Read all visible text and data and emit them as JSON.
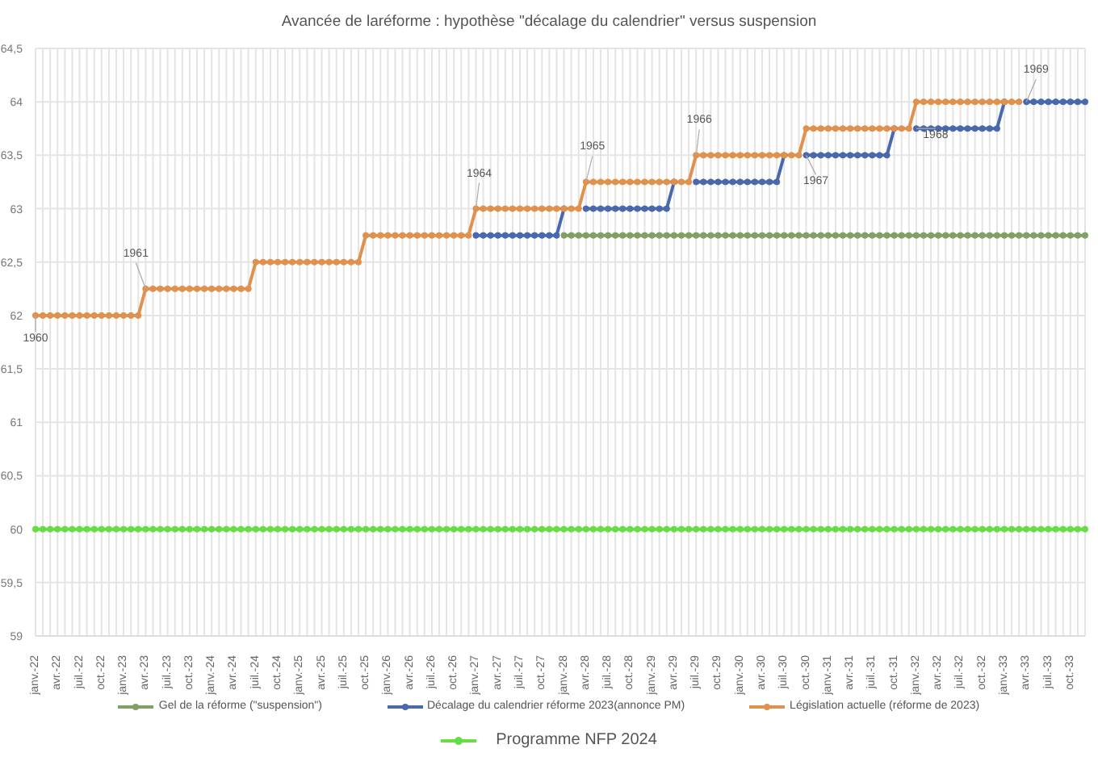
{
  "chart_data": {
    "type": "line",
    "title": "Avancée de laréforme : hypothèse \"décalage du calendrier\" versus suspension",
    "categories": [
      "janv.-22",
      null,
      null,
      "avr.-22",
      null,
      null,
      "juil.-22",
      null,
      null,
      "oct.-22",
      null,
      null,
      "janv.-23",
      null,
      null,
      "avr.-23",
      null,
      null,
      "juil.-23",
      null,
      null,
      "oct.-23",
      null,
      null,
      "janv.-24",
      null,
      null,
      "avr.-24",
      null,
      null,
      "juil.-24",
      null,
      null,
      "oct.-24",
      null,
      null,
      "janv.-25",
      null,
      null,
      "avr.-25",
      null,
      null,
      "juil.-25",
      null,
      null,
      "oct.-25",
      null,
      null,
      "janv.-26",
      null,
      null,
      "avr.-26",
      null,
      null,
      "juil.-26",
      null,
      null,
      "oct.-26",
      null,
      null,
      "janv.-27",
      null,
      null,
      "avr.-27",
      null,
      null,
      "juil.-27",
      null,
      null,
      "oct.-27",
      null,
      null,
      "janv.-28",
      null,
      null,
      "avr.-28",
      null,
      null,
      "juil.-28",
      null,
      null,
      "oct.-28",
      null,
      null,
      "janv.-29",
      null,
      null,
      "avr.-29",
      null,
      null,
      "juil.-29",
      null,
      null,
      "oct.-29",
      null,
      null,
      "janv.-30",
      null,
      null,
      "avr.-30",
      null,
      null,
      "juil.-30",
      null,
      null,
      "oct.-30",
      null,
      null,
      "janv.-31",
      null,
      null,
      "avr.-31",
      null,
      null,
      "juil.-31",
      null,
      null,
      "oct.-31",
      null,
      null,
      "janv.-32",
      null,
      null,
      "avr.-32",
      null,
      null,
      "juil.-32",
      null,
      null,
      "oct.-32",
      null,
      null,
      "janv.-33",
      null,
      null,
      "avr.-33",
      null,
      null,
      "juil.-33",
      null,
      null,
      "oct.-33",
      null,
      null
    ],
    "series": [
      {
        "name": "Gel de la réforme (\"suspension\")",
        "color": "#82a066",
        "values": [
          null,
          null,
          null,
          null,
          null,
          null,
          null,
          null,
          null,
          null,
          null,
          null,
          null,
          null,
          null,
          null,
          null,
          null,
          null,
          null,
          null,
          null,
          null,
          null,
          null,
          null,
          null,
          null,
          null,
          null,
          null,
          null,
          null,
          null,
          null,
          null,
          null,
          null,
          null,
          null,
          null,
          null,
          null,
          null,
          null,
          null,
          null,
          null,
          null,
          null,
          null,
          null,
          null,
          null,
          null,
          null,
          null,
          null,
          null,
          null,
          null,
          null,
          null,
          null,
          null,
          null,
          null,
          null,
          null,
          null,
          null,
          null,
          62.75,
          62.75,
          62.75,
          62.75,
          62.75,
          62.75,
          62.75,
          62.75,
          62.75,
          62.75,
          62.75,
          62.75,
          62.75,
          62.75,
          62.75,
          62.75,
          62.75,
          62.75,
          62.75,
          62.75,
          62.75,
          62.75,
          62.75,
          62.75,
          62.75,
          62.75,
          62.75,
          62.75,
          62.75,
          62.75,
          62.75,
          62.75,
          62.75,
          62.75,
          62.75,
          62.75,
          62.75,
          62.75,
          62.75,
          62.75,
          62.75,
          62.75,
          62.75,
          62.75,
          62.75,
          62.75,
          62.75,
          62.75,
          62.75,
          62.75,
          62.75,
          62.75,
          62.75,
          62.75,
          62.75,
          62.75,
          62.75,
          62.75,
          62.75,
          62.75,
          62.75,
          62.75,
          62.75,
          62.75,
          62.75,
          62.75,
          62.75,
          62.75,
          62.75,
          62.75,
          62.75,
          62.75
        ]
      },
      {
        "name": "Décalage du calendrier réforme 2023(annonce PM)",
        "color": "#4a68ad",
        "values": [
          null,
          null,
          null,
          null,
          null,
          null,
          null,
          null,
          null,
          null,
          null,
          null,
          null,
          null,
          null,
          null,
          null,
          null,
          null,
          null,
          null,
          null,
          null,
          null,
          null,
          null,
          null,
          null,
          null,
          null,
          null,
          null,
          null,
          null,
          null,
          null,
          null,
          null,
          null,
          null,
          null,
          null,
          null,
          null,
          null,
          null,
          null,
          null,
          null,
          null,
          null,
          null,
          null,
          null,
          null,
          null,
          null,
          null,
          null,
          null,
          62.75,
          62.75,
          62.75,
          62.75,
          62.75,
          62.75,
          62.75,
          62.75,
          62.75,
          62.75,
          62.75,
          62.75,
          63,
          null,
          null,
          63,
          63,
          63,
          63,
          63,
          63,
          63,
          63,
          63,
          63,
          63,
          63,
          63.25,
          null,
          null,
          63.25,
          63.25,
          63.25,
          63.25,
          63.25,
          63.25,
          63.25,
          63.25,
          63.25,
          63.25,
          63.25,
          63.25,
          63.5,
          null,
          null,
          63.5,
          63.5,
          63.5,
          63.5,
          63.5,
          63.5,
          63.5,
          63.5,
          63.5,
          63.5,
          63.5,
          63.5,
          63.75,
          null,
          null,
          63.75,
          63.75,
          63.75,
          63.75,
          63.75,
          63.75,
          63.75,
          63.75,
          63.75,
          63.75,
          63.75,
          63.75,
          64,
          null,
          null,
          64,
          64,
          64,
          64,
          64,
          64,
          64,
          64,
          64
        ]
      },
      {
        "name": "Législation actuelle (réforme de 2023)",
        "color": "#e0914d",
        "values": [
          62,
          62,
          62,
          62,
          62,
          62,
          62,
          62,
          62,
          62,
          62,
          62,
          62,
          62,
          62,
          62.25,
          62.25,
          62.25,
          62.25,
          62.25,
          62.25,
          62.25,
          62.25,
          62.25,
          62.25,
          62.25,
          62.25,
          62.25,
          62.25,
          62.25,
          62.5,
          62.5,
          62.5,
          62.5,
          62.5,
          62.5,
          62.5,
          62.5,
          62.5,
          62.5,
          62.5,
          62.5,
          62.5,
          62.5,
          62.5,
          62.75,
          62.75,
          62.75,
          62.75,
          62.75,
          62.75,
          62.75,
          62.75,
          62.75,
          62.75,
          62.75,
          62.75,
          62.75,
          62.75,
          62.75,
          63,
          63,
          63,
          63,
          63,
          63,
          63,
          63,
          63,
          63,
          63,
          63,
          63,
          63,
          63,
          63.25,
          63.25,
          63.25,
          63.25,
          63.25,
          63.25,
          63.25,
          63.25,
          63.25,
          63.25,
          63.25,
          63.25,
          63.25,
          63.25,
          63.25,
          63.5,
          63.5,
          63.5,
          63.5,
          63.5,
          63.5,
          63.5,
          63.5,
          63.5,
          63.5,
          63.5,
          63.5,
          63.5,
          63.5,
          63.5,
          63.75,
          63.75,
          63.75,
          63.75,
          63.75,
          63.75,
          63.75,
          63.75,
          63.75,
          63.75,
          63.75,
          63.75,
          63.75,
          63.75,
          63.75,
          64,
          64,
          64,
          64,
          64,
          64,
          64,
          64,
          64,
          64,
          64,
          64,
          64,
          64,
          64,
          null,
          null,
          null,
          null,
          null,
          null,
          null,
          null,
          null
        ]
      },
      {
        "name": "Programme NFP 2024",
        "color": "#66dd44",
        "values": [
          60,
          60,
          60,
          60,
          60,
          60,
          60,
          60,
          60,
          60,
          60,
          60,
          60,
          60,
          60,
          60,
          60,
          60,
          60,
          60,
          60,
          60,
          60,
          60,
          60,
          60,
          60,
          60,
          60,
          60,
          60,
          60,
          60,
          60,
          60,
          60,
          60,
          60,
          60,
          60,
          60,
          60,
          60,
          60,
          60,
          60,
          60,
          60,
          60,
          60,
          60,
          60,
          60,
          60,
          60,
          60,
          60,
          60,
          60,
          60,
          60,
          60,
          60,
          60,
          60,
          60,
          60,
          60,
          60,
          60,
          60,
          60,
          60,
          60,
          60,
          60,
          60,
          60,
          60,
          60,
          60,
          60,
          60,
          60,
          60,
          60,
          60,
          60,
          60,
          60,
          60,
          60,
          60,
          60,
          60,
          60,
          60,
          60,
          60,
          60,
          60,
          60,
          60,
          60,
          60,
          60,
          60,
          60,
          60,
          60,
          60,
          60,
          60,
          60,
          60,
          60,
          60,
          60,
          60,
          60,
          60,
          60,
          60,
          60,
          60,
          60,
          60,
          60,
          60,
          60,
          60,
          60,
          60,
          60,
          60,
          60,
          60,
          60,
          60,
          60,
          60,
          60,
          60,
          60
        ]
      }
    ],
    "ylim": [
      59,
      64.5
    ],
    "yticks": [
      59,
      {
        "value": 59.5,
        "label": "59,5"
      },
      60,
      {
        "value": 60.5,
        "label": "60,5"
      },
      61,
      {
        "value": 61.5,
        "label": "61,5"
      },
      62,
      {
        "value": 62.5,
        "label": "62,5"
      },
      63,
      {
        "value": 63.5,
        "label": "63,5"
      },
      64,
      {
        "value": 64.5,
        "label": "64,5"
      }
    ],
    "annotations": [
      {
        "text": "1960",
        "x": "janv.-22",
        "y": 62
      },
      {
        "text": "1961",
        "x": "avr.-23",
        "y": 62.25
      },
      {
        "text": "1964",
        "x": "janv.-27",
        "y": 63
      },
      {
        "text": "1965",
        "x": "avr.-28",
        "y": 63.25
      },
      {
        "text": "1966",
        "x": "juil.-29",
        "y": 63.5
      },
      {
        "text": "1967",
        "x": "oct.-30",
        "y": 63.5
      },
      {
        "text": "1968",
        "x": "janv.-32",
        "y": 63.75
      },
      {
        "text": "1969",
        "x": "avr.-33",
        "y": 64
      }
    ],
    "grid": true,
    "legend": "bottom",
    "marker": "circle",
    "line_style": "solid"
  }
}
